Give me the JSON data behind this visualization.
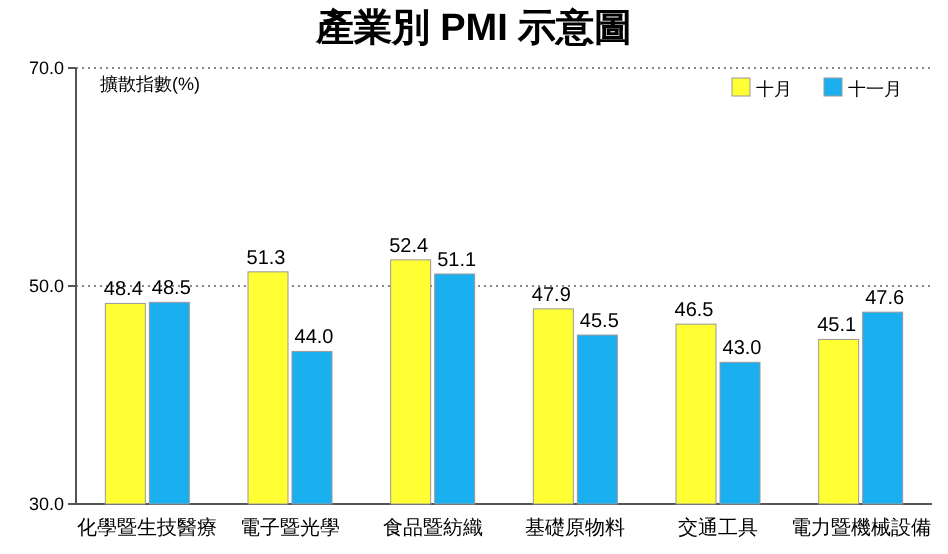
{
  "chart_data": {
    "type": "bar",
    "title": "產業別 PMI 示意圖",
    "ylabel": "擴散指數(%)",
    "categories": [
      "化學暨生技醫療",
      "電子暨光學",
      "食品暨紡織",
      "基礎原物料",
      "交通工具",
      "電力暨機械設備"
    ],
    "series": [
      {
        "name": "十月",
        "color": "#ffff33",
        "values": [
          48.4,
          51.3,
          52.4,
          47.9,
          46.5,
          45.1
        ],
        "value_labels": [
          "48.4",
          "51.3",
          "52.4",
          "47.9",
          "46.5",
          "45.1"
        ]
      },
      {
        "name": "十一月",
        "color": "#1ab0f0",
        "values": [
          48.5,
          44.0,
          51.1,
          45.5,
          43.0,
          47.6
        ],
        "value_labels": [
          "48.5",
          "44.0",
          "51.1",
          "45.5",
          "43.0",
          "47.6"
        ]
      }
    ],
    "ylim": [
      30,
      70
    ],
    "yticks": [
      {
        "value": 30,
        "label": "30.0"
      },
      {
        "value": 50,
        "label": "50.0"
      },
      {
        "value": 70,
        "label": "70.0"
      }
    ],
    "grid": "y",
    "legend": "top right"
  }
}
